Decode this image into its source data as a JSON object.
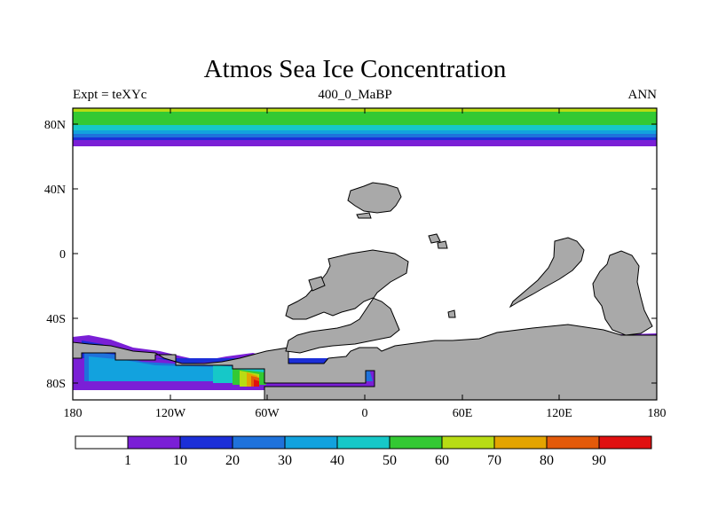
{
  "title": "Atmos Sea Ice Concentration",
  "subtitle_left": "Expt = teXYc",
  "subtitle_center": "400_0_MaBP",
  "subtitle_right": "ANN",
  "map": {
    "lat_ticks": [
      "80N",
      "40N",
      "0",
      "40S",
      "80S"
    ],
    "lon_ticks": [
      "180",
      "120W",
      "60W",
      "0",
      "60E",
      "120E",
      "180"
    ],
    "lat_values": [
      80,
      40,
      0,
      -40,
      -80
    ],
    "lon_values": [
      -180,
      -120,
      -60,
      0,
      60,
      120,
      180
    ],
    "lon_range": [
      -180,
      180
    ],
    "lat_range": [
      -90,
      90
    ],
    "land_color": "#a9a9a9",
    "ocean_color": "#ffffff"
  },
  "colorbar": {
    "levels": [
      "1",
      "10",
      "20",
      "30",
      "40",
      "50",
      "60",
      "70",
      "80",
      "90"
    ],
    "colors": [
      "#ffffff",
      "#7a1fd6",
      "#1c2fd8",
      "#1f72db",
      "#12a2de",
      "#16c8c8",
      "#33c933",
      "#b8dc14",
      "#e4a400",
      "#e35a0a",
      "#e01010"
    ]
  }
}
